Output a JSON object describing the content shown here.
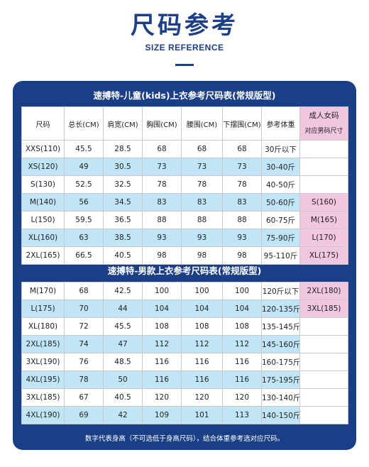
{
  "header": {
    "title_cn": "尺码参考",
    "title_en": "SIZE REFERENCE"
  },
  "kids_table": {
    "title": "速搏特-儿童(kids)上衣参考尺码表(常规版型)",
    "headers": [
      "尺码",
      "总长(CM)",
      "肩宽(CM)",
      "胸围(CM)",
      "腰围(CM)",
      "下摆围(CM)",
      "参考体重"
    ],
    "adult_col_title": "成人女码",
    "adult_col_sub": "对应男码尺寸",
    "rows": [
      [
        "XXS(110)",
        "45.5",
        "28.5",
        "68",
        "68",
        "68",
        "30斤以下",
        ""
      ],
      [
        "XS(120)",
        "49",
        "30.5",
        "73",
        "73",
        "73",
        "30-40斤",
        ""
      ],
      [
        "S(130)",
        "52.5",
        "32.5",
        "78",
        "78",
        "78",
        "40-50斤",
        ""
      ],
      [
        "M(140)",
        "56",
        "34.5",
        "83",
        "83",
        "83",
        "50-60斤",
        "S(160)"
      ],
      [
        "L(150)",
        "59.5",
        "36.5",
        "88",
        "88",
        "88",
        "60-75斤",
        "M(165)"
      ],
      [
        "XL(160)",
        "63",
        "38.5",
        "93",
        "93",
        "93",
        "75-90斤",
        "L(170)"
      ],
      [
        "2XL(165)",
        "66.5",
        "40.5",
        "98",
        "98",
        "98",
        "95-110斤",
        "XL(175)"
      ]
    ]
  },
  "men_table": {
    "title": "速搏特-男款上衣参考尺码表(常规版型)",
    "rows": [
      [
        "M(170)",
        "68",
        "42.5",
        "100",
        "100",
        "100",
        "120斤以下",
        "2XL(180)"
      ],
      [
        "L(175)",
        "70",
        "44",
        "104",
        "104",
        "104",
        "120-135斤",
        "3XL(185)"
      ],
      [
        "XL(180)",
        "72",
        "45.5",
        "108",
        "108",
        "108",
        "135-145斤",
        ""
      ],
      [
        "2XL(185)",
        "74",
        "47",
        "112",
        "112",
        "112",
        "145-160斤",
        ""
      ],
      [
        "3XL(190)",
        "76",
        "48.5",
        "116",
        "116",
        "116",
        "160-175斤",
        ""
      ],
      [
        "4XL(195)",
        "78",
        "50",
        "116",
        "116",
        "116",
        "175-195斤",
        ""
      ],
      [
        "3XL(185)",
        "67",
        "40.5",
        "120",
        "120",
        "120",
        "130-140斤",
        ""
      ],
      [
        "4XL(190)",
        "69",
        "42",
        "109",
        "101",
        "113",
        "140-150斤",
        ""
      ]
    ]
  },
  "footer_note": "数字代表身高（不可选低于身高尺码），结合体重参考选对应尺码。",
  "colors": {
    "navy": "#1b3f86",
    "highlight_blue": "#bfe5f6",
    "highlight_pink": "#f1c7df"
  }
}
